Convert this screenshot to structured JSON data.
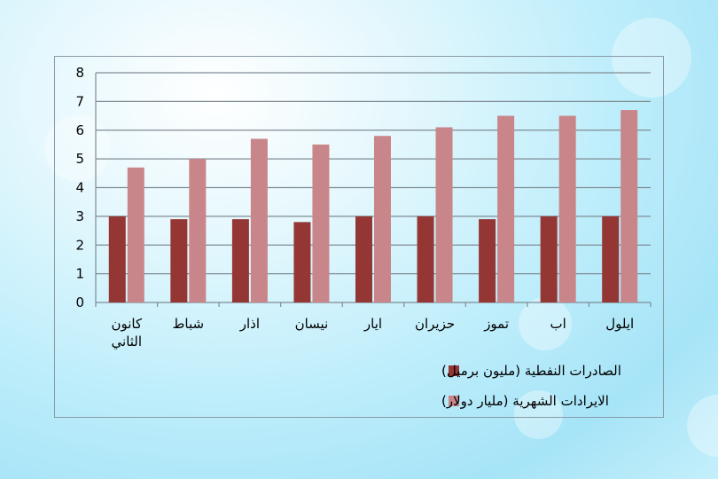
{
  "chart_data": {
    "type": "bar",
    "categories": [
      "كانون الثاني",
      "شباط",
      "اذار",
      "نيسان",
      "ايار",
      "حزيران",
      "تموز",
      "اب",
      "ايلول"
    ],
    "category_lines": [
      [
        "كانون",
        "الثاني"
      ],
      [
        "شباط"
      ],
      [
        "اذار"
      ],
      [
        "نيسان"
      ],
      [
        "ايار"
      ],
      [
        "حزيران"
      ],
      [
        "تموز"
      ],
      [
        "اب"
      ],
      [
        "ايلول"
      ]
    ],
    "series": [
      {
        "name": "الصادرات النفطية (مليون برميل)",
        "values": [
          3.0,
          2.9,
          2.9,
          2.8,
          3.0,
          3.0,
          2.9,
          3.0,
          3.0
        ],
        "color": "#943634"
      },
      {
        "name": "الايرادات الشهرية (مليار دولار)",
        "values": [
          4.7,
          5.0,
          5.7,
          5.5,
          5.8,
          6.1,
          6.5,
          6.5,
          6.7
        ],
        "color": "#c9868a"
      }
    ],
    "ylim": [
      0,
      8
    ],
    "yticks": [
      0,
      1,
      2,
      3,
      4,
      5,
      6,
      7,
      8
    ],
    "grid": true,
    "legend_position": "bottom",
    "title": "",
    "xlabel": "",
    "ylabel": ""
  }
}
